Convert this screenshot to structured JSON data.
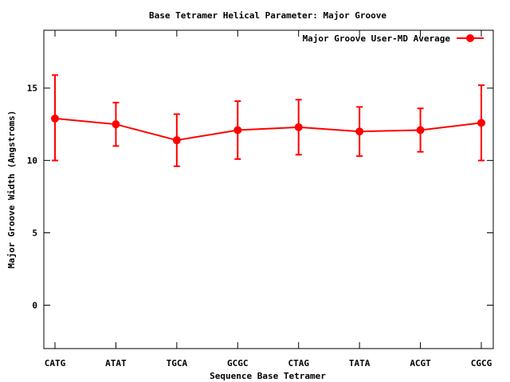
{
  "chart_data": {
    "type": "line",
    "title": "Base Tetramer Helical Parameter: Major Groove",
    "xlabel": "Sequence Base Tetramer",
    "ylabel": "Major Groove Width (Angstroms)",
    "categories": [
      "CATG",
      "ATAT",
      "TGCA",
      "GCGC",
      "CTAG",
      "TATA",
      "ACGT",
      "CGCG"
    ],
    "ylim": [
      -3,
      19
    ],
    "yticks": [
      0,
      5,
      10,
      15
    ],
    "grid": false,
    "legend_position": "top-right",
    "series": [
      {
        "name": "Major Groove User-MD Average",
        "color": "#ff0000",
        "values": [
          12.9,
          12.5,
          11.4,
          12.1,
          12.3,
          12.0,
          12.1,
          12.6
        ],
        "error_low": [
          10.0,
          11.0,
          9.6,
          10.1,
          10.4,
          10.3,
          10.6,
          10.0
        ],
        "error_high": [
          15.9,
          14.0,
          13.2,
          14.1,
          14.2,
          13.7,
          13.6,
          15.2
        ]
      }
    ]
  }
}
